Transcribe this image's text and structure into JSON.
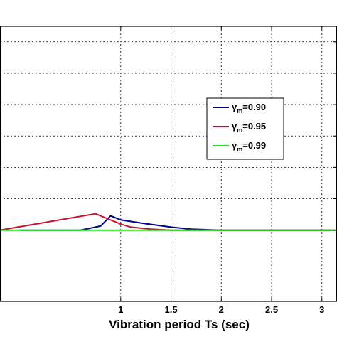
{
  "chart_data": {
    "type": "line",
    "title": "",
    "xlabel": "Vibration period Ts (sec)",
    "ylabel": "",
    "xlim": [
      -0.2,
      3.15
    ],
    "ylim": [
      -0.35,
      1.0
    ],
    "xticks": [
      1,
      1.5,
      2,
      2.5,
      3
    ],
    "xtick_labels": [
      "1",
      "1.5",
      "2",
      "2.5",
      "3"
    ],
    "yticks": [
      0.0,
      0.154,
      0.308,
      0.462,
      0.616,
      0.77,
      0.924
    ],
    "grid": true,
    "legend": "right",
    "series": [
      {
        "name_symbol": "γ",
        "name_sub": "m",
        "name_value": "=0.90",
        "color": "#00008b",
        "x": [
          0.0,
          0.3,
          0.6,
          0.8,
          0.9,
          1.0,
          1.2,
          1.5,
          1.7,
          2.0,
          2.5,
          3.0,
          3.2
        ],
        "y": [
          0.0,
          0.0,
          0.0,
          0.02,
          0.07,
          0.05,
          0.035,
          0.015,
          0.005,
          0.0,
          0.0,
          0.0,
          0.0
        ]
      },
      {
        "name_symbol": "γ",
        "name_sub": "m",
        "name_value": "=0.95",
        "color": "#c8102e",
        "x": [
          -0.2,
          0.75,
          0.85,
          1.0,
          1.1,
          1.3,
          1.5,
          2.0,
          3.2
        ],
        "y": [
          0.0,
          0.08,
          0.06,
          0.03,
          0.015,
          0.005,
          0.0,
          0.0,
          0.0
        ]
      },
      {
        "name_symbol": "γ",
        "name_sub": "m",
        "name_value": "=0.99",
        "color": "#22e022",
        "x": [
          -0.2,
          3.2
        ],
        "y": [
          0.0,
          0.0
        ]
      }
    ]
  }
}
